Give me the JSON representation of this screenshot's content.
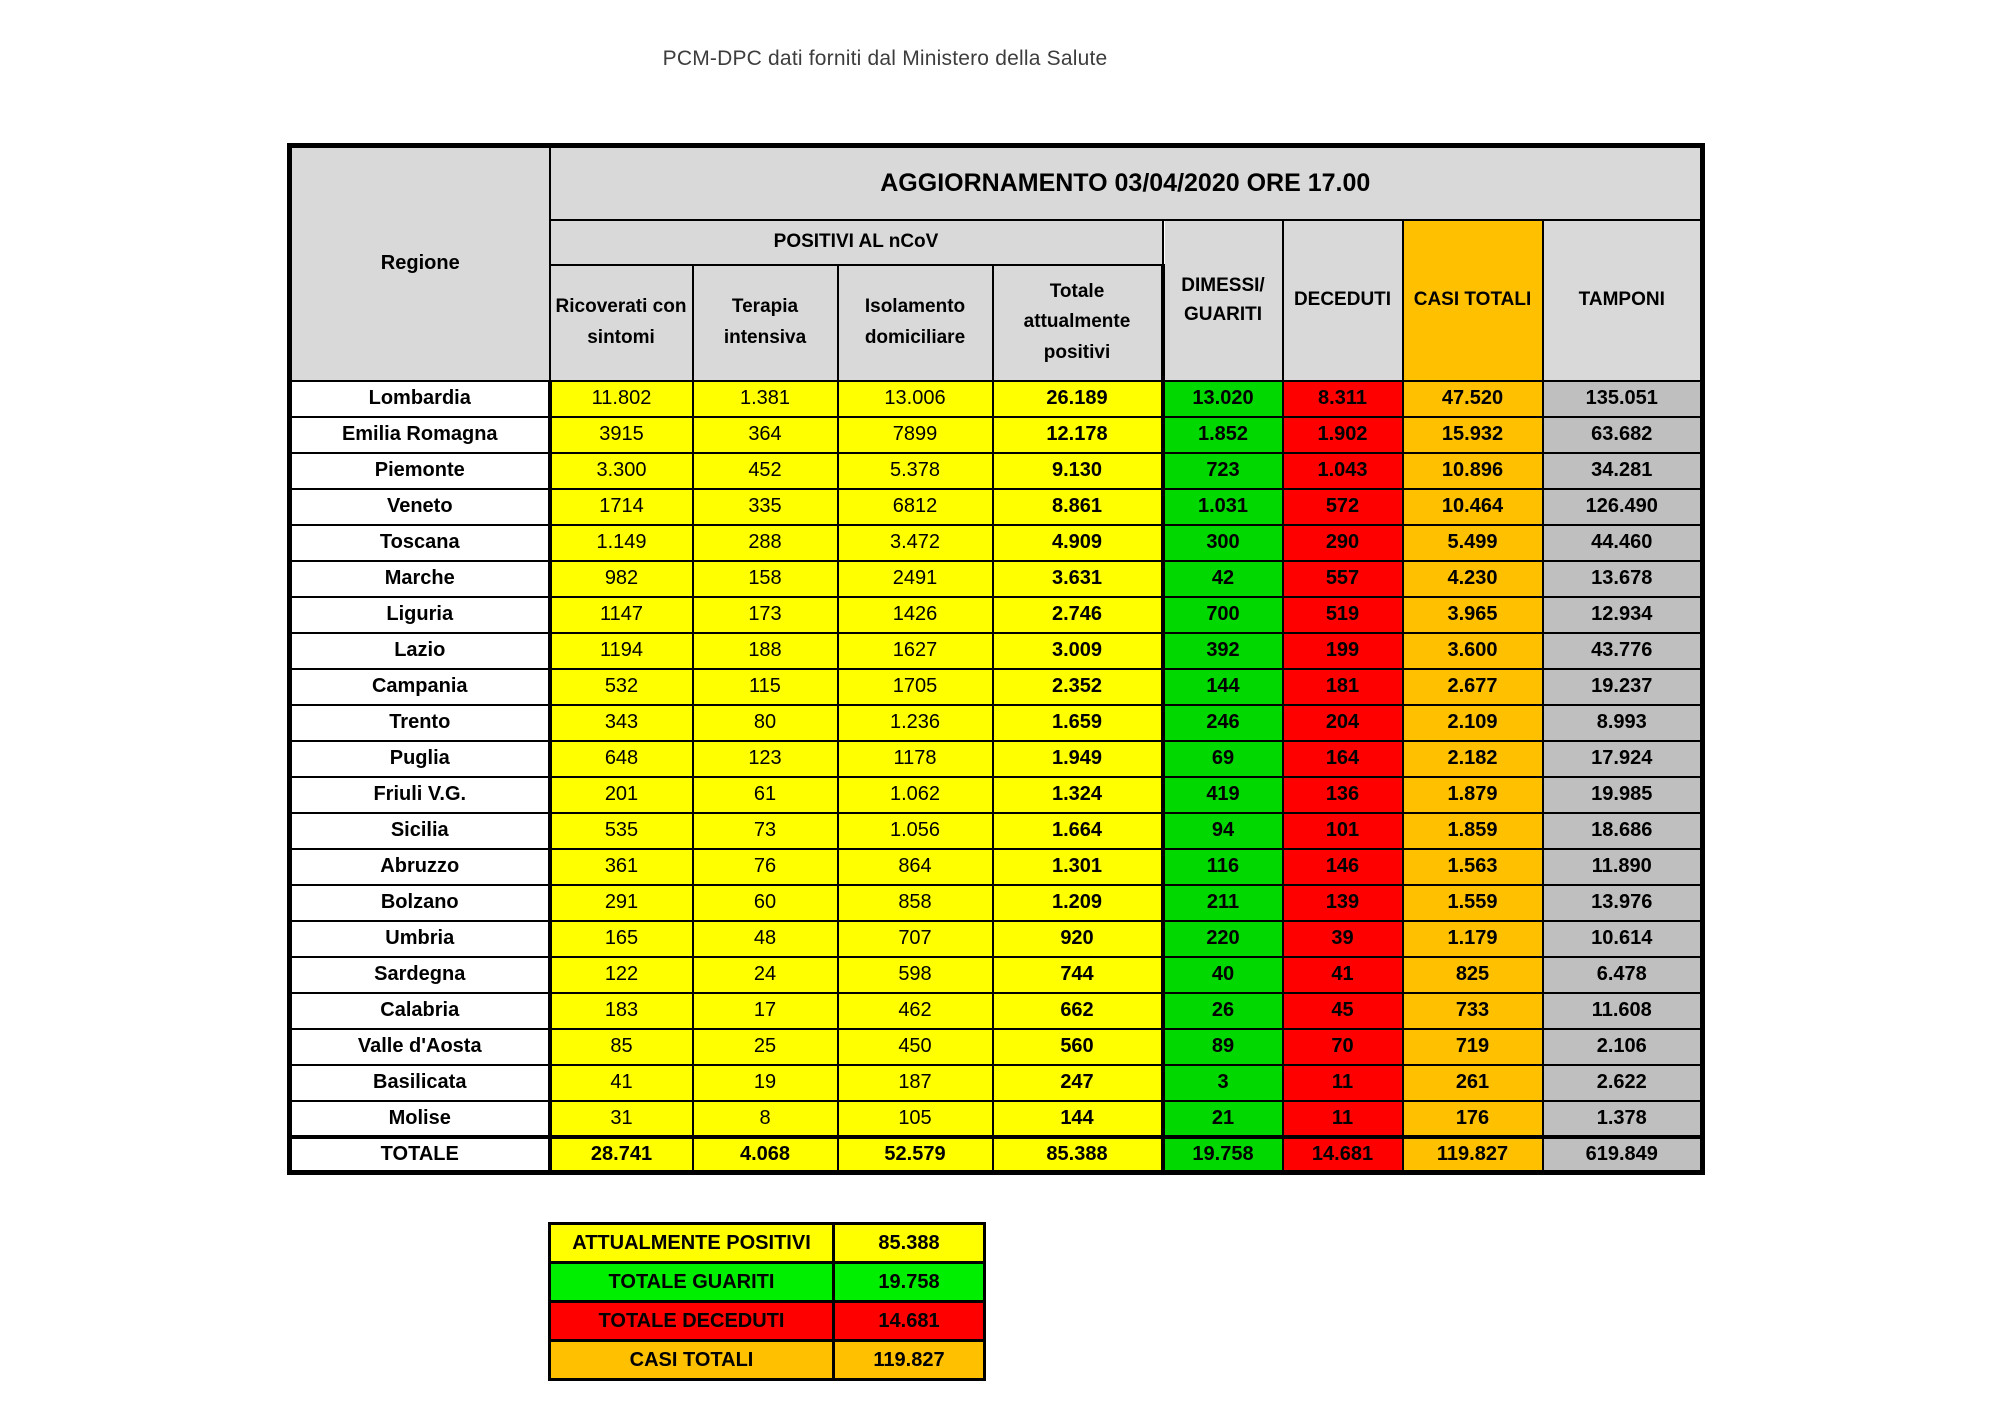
{
  "page_title": "PCM-DPC dati forniti dal Ministero della Salute",
  "chart_data": {
    "type": "table",
    "title": "AGGIORNAMENTO 03/04/2020 ORE 17.00",
    "region_header": "Regione",
    "group_header": "POSITIVI AL nCoV",
    "columns": [
      "Ricoverati con sintomi",
      "Terapia intensiva",
      "Isolamento domiciliare",
      "Totale attualmente positivi",
      "DIMESSI/ GUARITI",
      "DECEDUTI",
      "CASI TOTALI",
      "TAMPONI"
    ],
    "rows": [
      {
        "region": "Lombardia",
        "values": [
          "11.802",
          "1.381",
          "13.006",
          "26.189",
          "13.020",
          "8.311",
          "47.520",
          "135.051"
        ]
      },
      {
        "region": "Emilia Romagna",
        "values": [
          "3915",
          "364",
          "7899",
          "12.178",
          "1.852",
          "1.902",
          "15.932",
          "63.682"
        ]
      },
      {
        "region": "Piemonte",
        "values": [
          "3.300",
          "452",
          "5.378",
          "9.130",
          "723",
          "1.043",
          "10.896",
          "34.281"
        ]
      },
      {
        "region": "Veneto",
        "values": [
          "1714",
          "335",
          "6812",
          "8.861",
          "1.031",
          "572",
          "10.464",
          "126.490"
        ]
      },
      {
        "region": "Toscana",
        "values": [
          "1.149",
          "288",
          "3.472",
          "4.909",
          "300",
          "290",
          "5.499",
          "44.460"
        ]
      },
      {
        "region": "Marche",
        "values": [
          "982",
          "158",
          "2491",
          "3.631",
          "42",
          "557",
          "4.230",
          "13.678"
        ]
      },
      {
        "region": "Liguria",
        "values": [
          "1147",
          "173",
          "1426",
          "2.746",
          "700",
          "519",
          "3.965",
          "12.934"
        ]
      },
      {
        "region": "Lazio",
        "values": [
          "1194",
          "188",
          "1627",
          "3.009",
          "392",
          "199",
          "3.600",
          "43.776"
        ]
      },
      {
        "region": "Campania",
        "values": [
          "532",
          "115",
          "1705",
          "2.352",
          "144",
          "181",
          "2.677",
          "19.237"
        ]
      },
      {
        "region": "Trento",
        "values": [
          "343",
          "80",
          "1.236",
          "1.659",
          "246",
          "204",
          "2.109",
          "8.993"
        ]
      },
      {
        "region": "Puglia",
        "values": [
          "648",
          "123",
          "1178",
          "1.949",
          "69",
          "164",
          "2.182",
          "17.924"
        ]
      },
      {
        "region": "Friuli V.G.",
        "values": [
          "201",
          "61",
          "1.062",
          "1.324",
          "419",
          "136",
          "1.879",
          "19.985"
        ]
      },
      {
        "region": "Sicilia",
        "values": [
          "535",
          "73",
          "1.056",
          "1.664",
          "94",
          "101",
          "1.859",
          "18.686"
        ]
      },
      {
        "region": "Abruzzo",
        "values": [
          "361",
          "76",
          "864",
          "1.301",
          "116",
          "146",
          "1.563",
          "11.890"
        ]
      },
      {
        "region": "Bolzano",
        "values": [
          "291",
          "60",
          "858",
          "1.209",
          "211",
          "139",
          "1.559",
          "13.976"
        ]
      },
      {
        "region": "Umbria",
        "values": [
          "165",
          "48",
          "707",
          "920",
          "220",
          "39",
          "1.179",
          "10.614"
        ]
      },
      {
        "region": "Sardegna",
        "values": [
          "122",
          "24",
          "598",
          "744",
          "40",
          "41",
          "825",
          "6.478"
        ]
      },
      {
        "region": "Calabria",
        "values": [
          "183",
          "17",
          "462",
          "662",
          "26",
          "45",
          "733",
          "11.608"
        ]
      },
      {
        "region": "Valle d'Aosta",
        "values": [
          "85",
          "25",
          "450",
          "560",
          "89",
          "70",
          "719",
          "2.106"
        ]
      },
      {
        "region": "Basilicata",
        "values": [
          "41",
          "19",
          "187",
          "247",
          "3",
          "11",
          "261",
          "2.622"
        ]
      },
      {
        "region": "Molise",
        "values": [
          "31",
          "8",
          "105",
          "144",
          "21",
          "11",
          "176",
          "1.378"
        ]
      }
    ],
    "total": {
      "region": "TOTALE",
      "values": [
        "28.741",
        "4.068",
        "52.579",
        "85.388",
        "19.758",
        "14.681",
        "119.827",
        "619.849"
      ]
    }
  },
  "summary": {
    "rows": [
      {
        "label": "ATTUALMENTE POSITIVI",
        "value": "85.388",
        "color": "yellow"
      },
      {
        "label": "TOTALE GUARITI",
        "value": "19.758",
        "color": "green"
      },
      {
        "label": "TOTALE DECEDUTI",
        "value": "14.681",
        "color": "red"
      },
      {
        "label": "CASI TOTALI",
        "value": "119.827",
        "color": "orange"
      }
    ]
  },
  "colors": {
    "header_gray": "#D9D9D9",
    "tamponi_gray": "#BFBFBF",
    "yellow": "#FFFF00",
    "green": "#00D800",
    "summary_green": "#00EE00",
    "red": "#FF0000",
    "orange": "#FFC000",
    "line": "#000000",
    "title_text": "#3D3D3D"
  }
}
